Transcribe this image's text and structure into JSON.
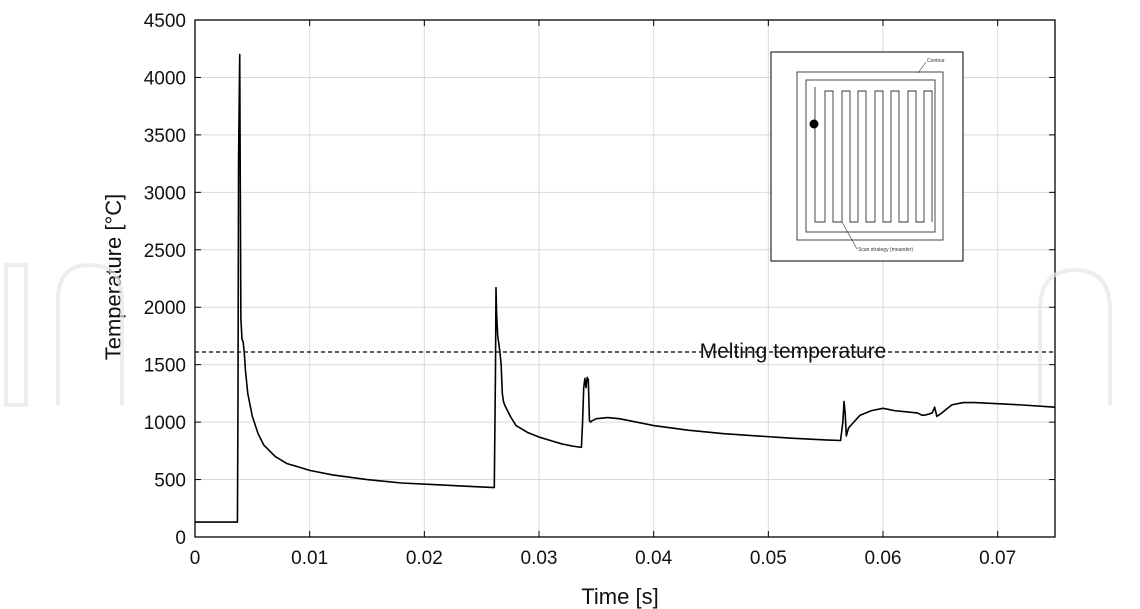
{
  "chart_data": {
    "type": "line",
    "title": "",
    "xlabel": "Time [s]",
    "ylabel": "Temperature [°C]",
    "xlim": [
      0,
      0.075
    ],
    "ylim": [
      0,
      4500
    ],
    "xticks": [
      0,
      0.01,
      0.02,
      0.03,
      0.04,
      0.05,
      0.06,
      0.07
    ],
    "xtick_labels": [
      "0",
      "0.01",
      "0.02",
      "0.03",
      "0.04",
      "0.05",
      "0.06",
      "0.07"
    ],
    "yticks": [
      0,
      500,
      1000,
      1500,
      2000,
      2500,
      3000,
      3500,
      4000,
      4500
    ],
    "ytick_labels": [
      "0",
      "500",
      "1000",
      "1500",
      "2000",
      "2500",
      "3000",
      "3500",
      "4000",
      "4500"
    ],
    "grid": true,
    "series": [
      {
        "color": "#000000",
        "x": [
          0,
          0.0037,
          0.00375,
          0.0038,
          0.0039,
          0.004,
          0.0041,
          0.0042,
          0.0043,
          0.0044,
          0.0046,
          0.005,
          0.0055,
          0.006,
          0.007,
          0.008,
          0.009,
          0.01,
          0.012,
          0.015,
          0.018,
          0.021,
          0.024,
          0.0261,
          0.0262,
          0.02625,
          0.0263,
          0.0264,
          0.0265,
          0.0266,
          0.0267,
          0.0268,
          0.0269,
          0.027,
          0.0275,
          0.028,
          0.029,
          0.03,
          0.031,
          0.032,
          0.033,
          0.0337,
          0.0338,
          0.0339,
          0.034,
          0.0341,
          0.0342,
          0.0343,
          0.0344,
          0.0345,
          0.0346,
          0.035,
          0.036,
          0.037,
          0.038,
          0.04,
          0.043,
          0.046,
          0.049,
          0.052,
          0.055,
          0.0563,
          0.0565,
          0.0566,
          0.0567,
          0.0568,
          0.057,
          0.058,
          0.059,
          0.06,
          0.061,
          0.062,
          0.063,
          0.0634,
          0.0636,
          0.064,
          0.0643,
          0.0645,
          0.0647,
          0.065,
          0.066,
          0.067,
          0.068,
          0.07,
          0.072,
          0.075
        ],
        "y": [
          130,
          130,
          1200,
          3300,
          4200,
          1900,
          1720,
          1700,
          1600,
          1450,
          1250,
          1050,
          900,
          800,
          700,
          640,
          610,
          580,
          540,
          500,
          470,
          455,
          440,
          430,
          1400,
          2170,
          1950,
          1750,
          1680,
          1600,
          1500,
          1250,
          1180,
          1150,
          1050,
          970,
          910,
          870,
          840,
          810,
          790,
          780,
          1000,
          1300,
          1380,
          1300,
          1390,
          1370,
          1010,
          1000,
          1010,
          1030,
          1040,
          1030,
          1010,
          970,
          930,
          900,
          880,
          860,
          845,
          840,
          1000,
          1180,
          1080,
          880,
          950,
          1060,
          1100,
          1120,
          1100,
          1090,
          1080,
          1060,
          1060,
          1070,
          1080,
          1130,
          1050,
          1070,
          1150,
          1170,
          1170,
          1160,
          1150,
          1130
        ]
      }
    ],
    "reference_line": {
      "y": 1610,
      "style": "dashed",
      "label": "Melting temperature"
    }
  },
  "inset": {
    "contour_label": "Contour",
    "scan_label": "Scan strategy (meander)"
  },
  "colors": {
    "line": "#000000",
    "grid": "#d9d9d9",
    "axes": "#000000"
  }
}
